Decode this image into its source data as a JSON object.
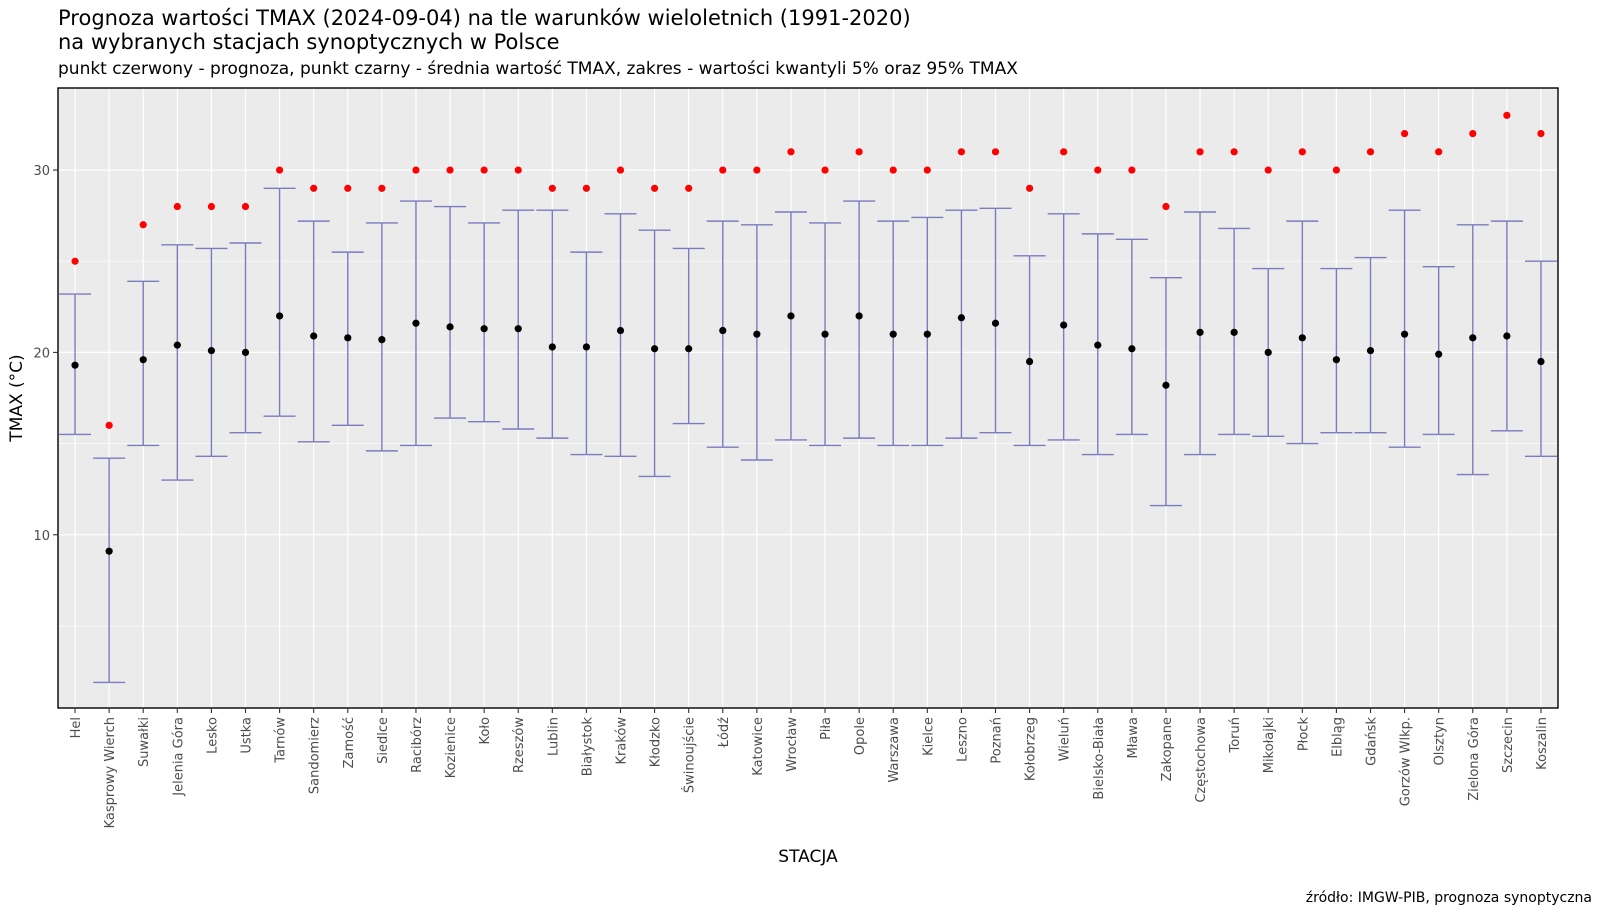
{
  "title_line1": "Prognoza wartości TMAX (2024-09-04) na tle warunków wieloletnich (1991-2020)",
  "title_line2": "na wybranych stacjach synoptycznych w Polsce",
  "subtitle": "punkt czerwony - prognoza, punkt czarny - średnia wartość TMAX, zakres - wartości kwantyli 5% oraz 95% TMAX",
  "caption": "źródło: IMGW-PIB, prognoza synoptyczna",
  "chart_data": {
    "type": "scatter",
    "xlabel": "STACJA",
    "ylabel": "TMAX (°C)",
    "ylim": [
      0.5,
      34.5
    ],
    "yticks": [
      10,
      20,
      30
    ],
    "grid": true,
    "colors": {
      "forecast": "#ff0000",
      "mean": "#000000",
      "range": "#7b7bbf",
      "panel": "#ebebeb"
    },
    "categories": [
      "Hel",
      "Kasprowy Wierch",
      "Suwałki",
      "Jelenia Góra",
      "Lesko",
      "Ustka",
      "Tarnów",
      "Sandomierz",
      "Zamość",
      "Siedlce",
      "Racibórz",
      "Kozienice",
      "Koło",
      "Rzeszów",
      "Lublin",
      "Białystok",
      "Kraków",
      "Kłodzko",
      "Świnoujście",
      "Łódź",
      "Katowice",
      "Wrocław",
      "Piła",
      "Opole",
      "Warszawa",
      "Kielce",
      "Leszno",
      "Poznań",
      "Kołobrzeg",
      "Wieluń",
      "Bielsko-Biała",
      "Mława",
      "Zakopane",
      "Częstochowa",
      "Toruń",
      "Mikołajki",
      "Płock",
      "Elbląg",
      "Gdańsk",
      "Gorzów Wlkp.",
      "Olsztyn",
      "Zielona Góra",
      "Szczecin",
      "Koszalin"
    ],
    "forecast": [
      25,
      16,
      27,
      28,
      28,
      28,
      30,
      29,
      29,
      29,
      30,
      30,
      30,
      30,
      29,
      29,
      30,
      29,
      29,
      30,
      30,
      31,
      30,
      31,
      30,
      30,
      31,
      31,
      29,
      31,
      30,
      30,
      28,
      31,
      31,
      30,
      31,
      30,
      31,
      32,
      31,
      32,
      33,
      32
    ],
    "mean": [
      19.3,
      9.1,
      19.6,
      20.4,
      20.1,
      20.0,
      22.0,
      20.9,
      20.8,
      20.7,
      21.6,
      21.4,
      21.3,
      21.3,
      20.3,
      20.3,
      21.2,
      20.2,
      20.2,
      21.2,
      21.0,
      22.0,
      21.0,
      22.0,
      21.0,
      21.0,
      21.9,
      21.6,
      19.5,
      21.5,
      20.4,
      20.2,
      18.2,
      21.1,
      21.1,
      20.0,
      20.8,
      19.6,
      20.1,
      21.0,
      19.9,
      20.8,
      20.9,
      19.5
    ],
    "q05": [
      15.5,
      1.9,
      14.9,
      13.0,
      14.3,
      15.6,
      16.5,
      15.1,
      16.0,
      14.6,
      14.9,
      16.4,
      16.2,
      15.8,
      15.3,
      14.4,
      14.3,
      13.2,
      16.1,
      14.8,
      14.1,
      15.2,
      14.9,
      15.3,
      14.9,
      14.9,
      15.3,
      15.6,
      14.9,
      15.2,
      14.4,
      15.5,
      11.6,
      14.4,
      15.5,
      15.4,
      15.0,
      15.6,
      15.6,
      14.8,
      15.5,
      13.3,
      15.7,
      14.3
    ],
    "q95": [
      23.2,
      14.2,
      23.9,
      25.9,
      25.7,
      26.0,
      29.0,
      27.2,
      25.5,
      27.1,
      28.3,
      28.0,
      27.1,
      27.8,
      27.8,
      25.5,
      27.6,
      26.7,
      25.7,
      27.2,
      27.0,
      27.7,
      27.1,
      28.3,
      27.2,
      27.4,
      27.8,
      27.9,
      25.3,
      27.6,
      26.5,
      26.2,
      24.1,
      27.7,
      26.8,
      24.6,
      27.2,
      24.6,
      25.2,
      27.8,
      24.7,
      27.0,
      27.2,
      25.0
    ]
  }
}
